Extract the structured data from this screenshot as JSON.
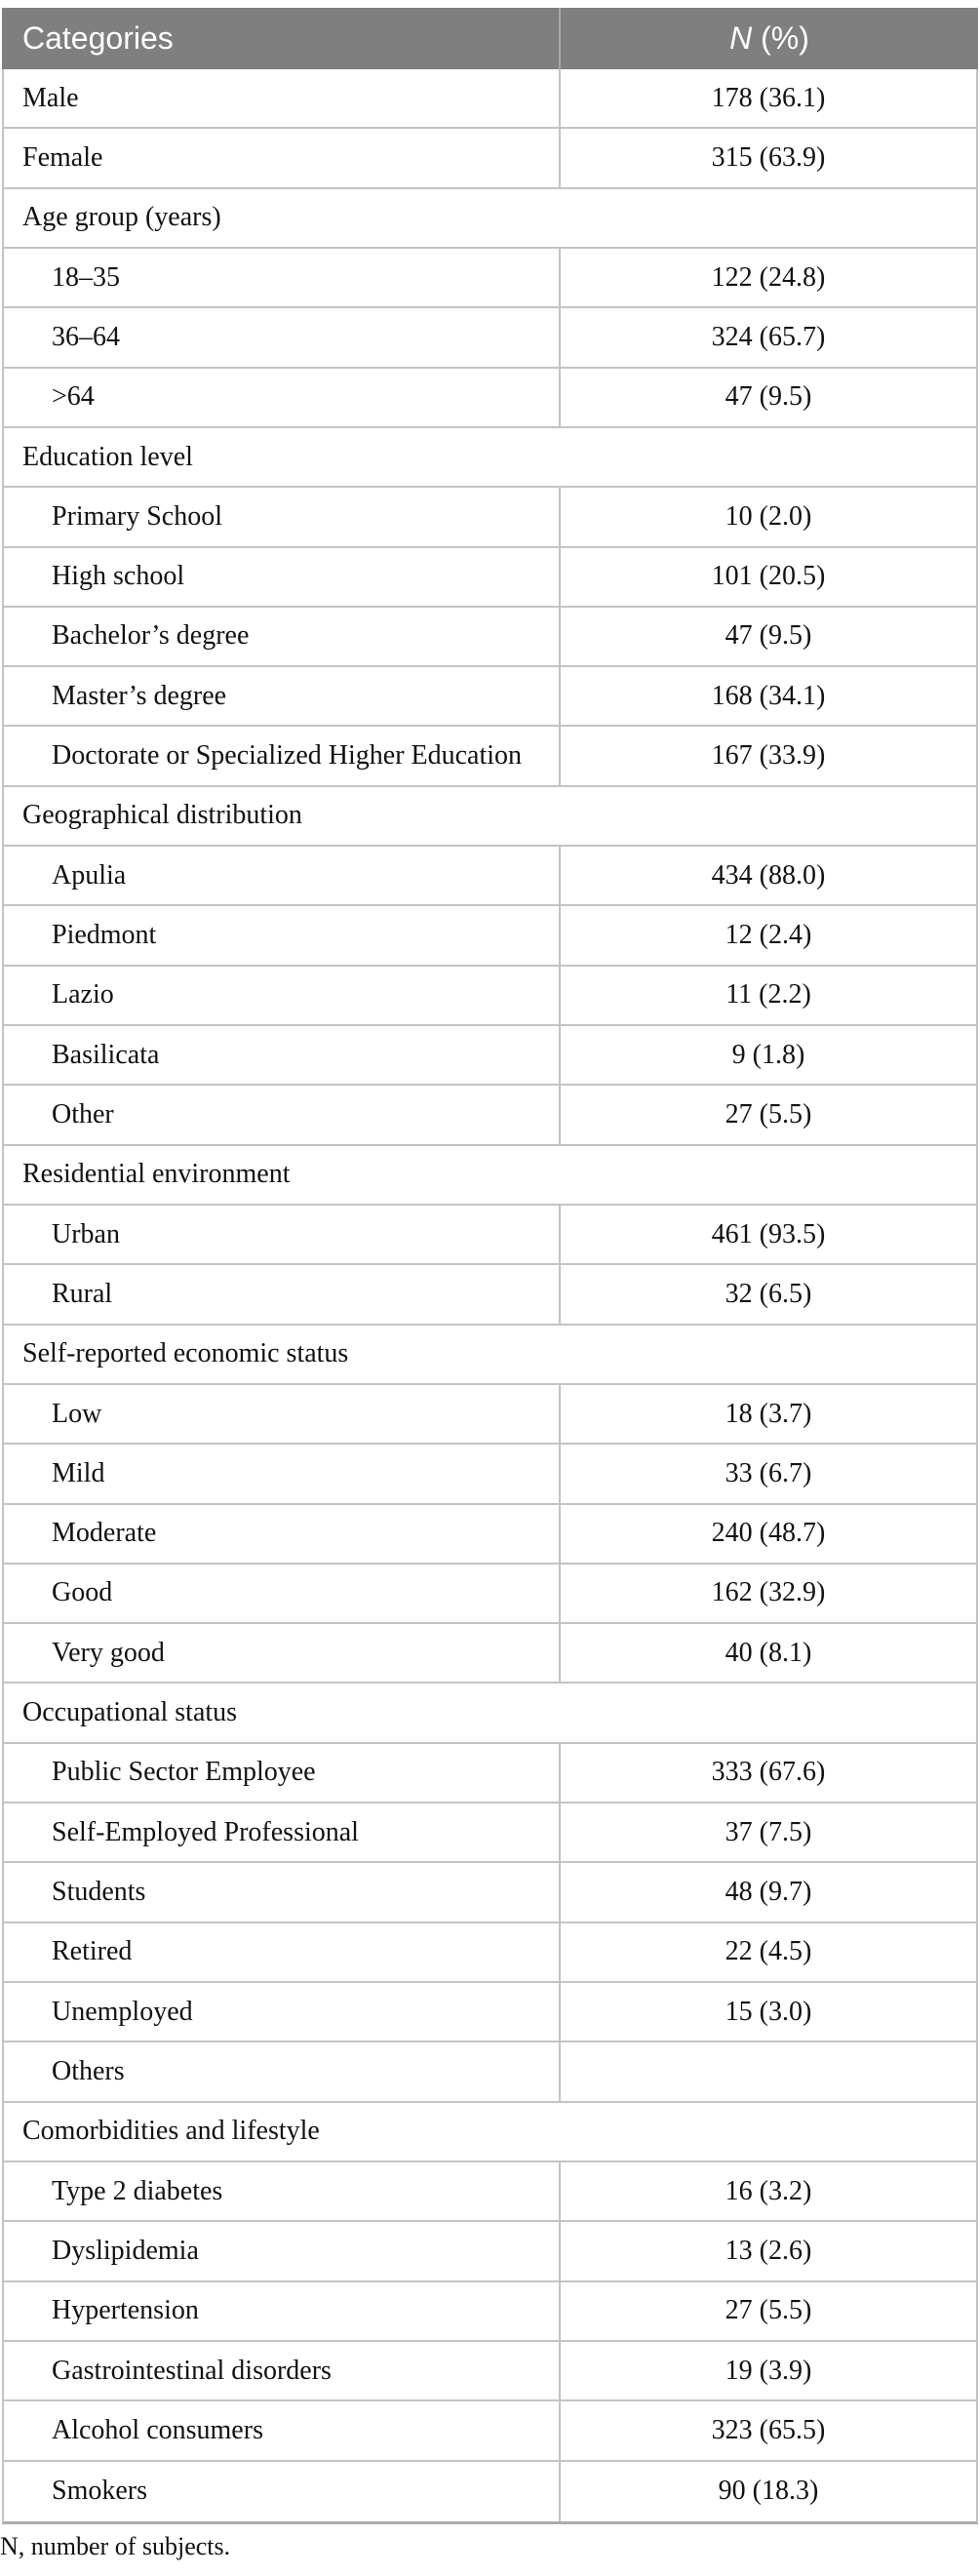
{
  "colors": {
    "header_bg": "#7f7f7f",
    "header_text": "#ffffff",
    "header_divider": "#a6a6a6",
    "grid_line": "#c3c3c3",
    "bottom_border": "#ababab",
    "body_text": "#111111"
  },
  "table": {
    "header": {
      "categories": "Categories",
      "n": "N",
      "n_suffix": " (%)"
    },
    "rows": [
      {
        "type": "data",
        "label": "Male",
        "value": "178 (36.1)",
        "indent": false
      },
      {
        "type": "data",
        "label": "Female",
        "value": "315 (63.9)",
        "indent": false
      },
      {
        "type": "section",
        "label": "Age group (years)"
      },
      {
        "type": "data",
        "label": "18–35",
        "value": "122 (24.8)",
        "indent": true
      },
      {
        "type": "data",
        "label": "36–64",
        "value": "324 (65.7)",
        "indent": true
      },
      {
        "type": "data",
        "label": ">64",
        "value": "47 (9.5)",
        "indent": true
      },
      {
        "type": "section",
        "label": "Education level"
      },
      {
        "type": "data",
        "label": "Primary School",
        "value": "10 (2.0)",
        "indent": true
      },
      {
        "type": "data",
        "label": "High school",
        "value": "101 (20.5)",
        "indent": true
      },
      {
        "type": "data",
        "label": "Bachelor’s degree",
        "value": "47 (9.5)",
        "indent": true
      },
      {
        "type": "data",
        "label": "Master’s degree",
        "value": "168 (34.1)",
        "indent": true
      },
      {
        "type": "data",
        "label": "Doctorate or Specialized Higher Education",
        "value": "167 (33.9)",
        "indent": true
      },
      {
        "type": "section",
        "label": "Geographical distribution"
      },
      {
        "type": "data",
        "label": "Apulia",
        "value": "434 (88.0)",
        "indent": true
      },
      {
        "type": "data",
        "label": "Piedmont",
        "value": "12 (2.4)",
        "indent": true
      },
      {
        "type": "data",
        "label": "Lazio",
        "value": "11 (2.2)",
        "indent": true
      },
      {
        "type": "data",
        "label": "Basilicata",
        "value": "9 (1.8)",
        "indent": true
      },
      {
        "type": "data",
        "label": "Other",
        "value": "27 (5.5)",
        "indent": true
      },
      {
        "type": "section",
        "label": "Residential environment"
      },
      {
        "type": "data",
        "label": "Urban",
        "value": "461 (93.5)",
        "indent": true
      },
      {
        "type": "data",
        "label": "Rural",
        "value": "32 (6.5)",
        "indent": true
      },
      {
        "type": "section",
        "label": "Self-reported economic status"
      },
      {
        "type": "data",
        "label": "Low",
        "value": "18 (3.7)",
        "indent": true
      },
      {
        "type": "data",
        "label": "Mild",
        "value": "33 (6.7)",
        "indent": true
      },
      {
        "type": "data",
        "label": "Moderate",
        "value": "240 (48.7)",
        "indent": true
      },
      {
        "type": "data",
        "label": "Good",
        "value": "162 (32.9)",
        "indent": true
      },
      {
        "type": "data",
        "label": "Very good",
        "value": "40 (8.1)",
        "indent": true
      },
      {
        "type": "section",
        "label": "Occupational status"
      },
      {
        "type": "data",
        "label": "Public Sector Employee",
        "value": "333 (67.6)",
        "indent": true
      },
      {
        "type": "data",
        "label": "Self-Employed Professional",
        "value": "37 (7.5)",
        "indent": true
      },
      {
        "type": "data",
        "label": "Students",
        "value": "48 (9.7)",
        "indent": true
      },
      {
        "type": "data",
        "label": "Retired",
        "value": "22 (4.5)",
        "indent": true
      },
      {
        "type": "data",
        "label": "Unemployed",
        "value": "15 (3.0)",
        "indent": true
      },
      {
        "type": "data",
        "label": "Others",
        "value": "",
        "indent": true
      },
      {
        "type": "section",
        "label": "Comorbidities and lifestyle"
      },
      {
        "type": "data",
        "label": "Type 2 diabetes",
        "value": "16 (3.2)",
        "indent": true
      },
      {
        "type": "data",
        "label": "Dyslipidemia",
        "value": "13 (2.6)",
        "indent": true
      },
      {
        "type": "data",
        "label": "Hypertension",
        "value": "27 (5.5)",
        "indent": true
      },
      {
        "type": "data",
        "label": "Gastrointestinal disorders",
        "value": "19 (3.9)",
        "indent": true
      },
      {
        "type": "data",
        "label": "Alcohol consumers",
        "value": "323 (65.5)",
        "indent": true
      },
      {
        "type": "data",
        "label": "Smokers",
        "value": "90 (18.3)",
        "indent": true
      }
    ]
  },
  "footnote": "N, number of subjects."
}
